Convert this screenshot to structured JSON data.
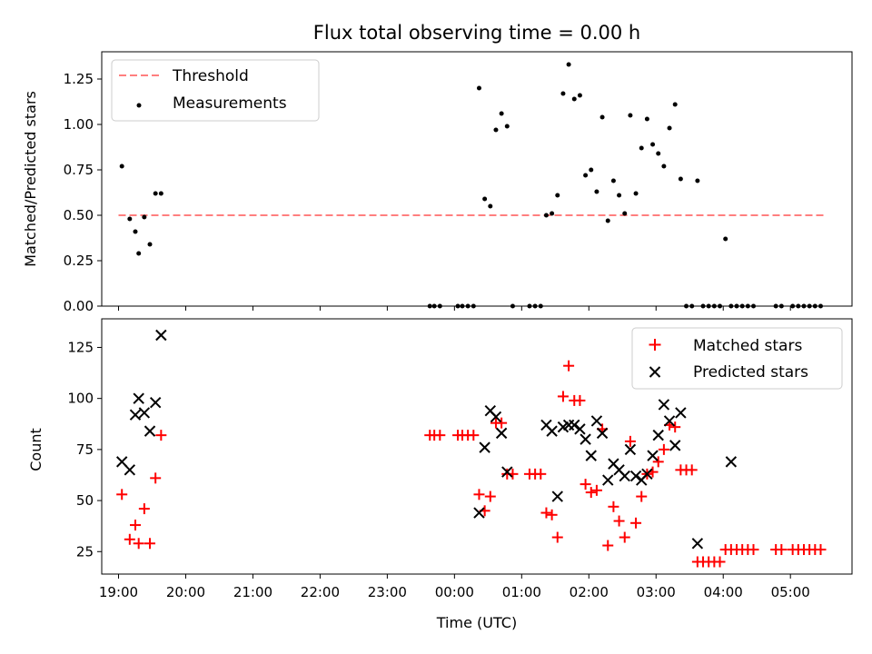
{
  "chart_data": [
    {
      "type": "scatter",
      "title": "Flux total observing time = 0.00 h",
      "ylabel": "Matched/Predicted stars",
      "xlim": [
        "18:45",
        "05:55"
      ],
      "ylim": [
        0,
        1.4
      ],
      "yticks": [
        "0.00",
        "0.25",
        "0.50",
        "0.75",
        "1.00",
        "1.25"
      ],
      "legend": "upper left",
      "legend_labels": [
        "Threshold",
        "Measurements"
      ],
      "threshold": {
        "name": "Threshold",
        "value": 0.5,
        "x_start": "19:00",
        "x_end": "05:30",
        "color": "#ff7f7f",
        "style": "dashed"
      },
      "series": [
        {
          "name": "Measurements",
          "marker": "dot",
          "color": "#000000",
          "points": [
            [
              "19:03",
              0.77
            ],
            [
              "19:10",
              0.48
            ],
            [
              "19:15",
              0.41
            ],
            [
              "19:18",
              0.29
            ],
            [
              "19:23",
              0.49
            ],
            [
              "19:28",
              0.34
            ],
            [
              "19:33",
              0.62
            ],
            [
              "19:38",
              0.62
            ],
            [
              "23:38",
              0.0
            ],
            [
              "23:42",
              0.0
            ],
            [
              "23:47",
              0.0
            ],
            [
              "00:03",
              0.0
            ],
            [
              "00:07",
              0.0
            ],
            [
              "00:12",
              0.0
            ],
            [
              "00:17",
              0.0
            ],
            [
              "00:22",
              1.2
            ],
            [
              "00:27",
              0.59
            ],
            [
              "00:32",
              0.55
            ],
            [
              "00:37",
              0.97
            ],
            [
              "00:42",
              1.06
            ],
            [
              "00:47",
              0.99
            ],
            [
              "00:52",
              0.0
            ],
            [
              "01:07",
              0.0
            ],
            [
              "01:12",
              0.0
            ],
            [
              "01:17",
              0.0
            ],
            [
              "01:22",
              0.5
            ],
            [
              "01:27",
              0.51
            ],
            [
              "01:32",
              0.61
            ],
            [
              "01:37",
              1.17
            ],
            [
              "01:42",
              1.33
            ],
            [
              "01:47",
              1.14
            ],
            [
              "01:52",
              1.16
            ],
            [
              "01:57",
              0.72
            ],
            [
              "02:02",
              0.75
            ],
            [
              "02:07",
              0.63
            ],
            [
              "02:12",
              1.04
            ],
            [
              "02:17",
              0.47
            ],
            [
              "02:22",
              0.69
            ],
            [
              "02:27",
              0.61
            ],
            [
              "02:32",
              0.51
            ],
            [
              "02:37",
              1.05
            ],
            [
              "02:42",
              0.62
            ],
            [
              "02:47",
              0.87
            ],
            [
              "02:52",
              1.03
            ],
            [
              "02:57",
              0.89
            ],
            [
              "03:02",
              0.84
            ],
            [
              "03:07",
              0.77
            ],
            [
              "03:12",
              0.98
            ],
            [
              "03:17",
              1.11
            ],
            [
              "03:22",
              0.7
            ],
            [
              "03:27",
              0.0
            ],
            [
              "03:32",
              0.0
            ],
            [
              "03:37",
              0.69
            ],
            [
              "03:42",
              0.0
            ],
            [
              "03:47",
              0.0
            ],
            [
              "03:52",
              0.0
            ],
            [
              "03:57",
              0.0
            ],
            [
              "04:02",
              0.37
            ],
            [
              "04:07",
              0.0
            ],
            [
              "04:12",
              0.0
            ],
            [
              "04:17",
              0.0
            ],
            [
              "04:22",
              0.0
            ],
            [
              "04:27",
              0.0
            ],
            [
              "04:47",
              0.0
            ],
            [
              "04:52",
              0.0
            ],
            [
              "05:02",
              0.0
            ],
            [
              "05:07",
              0.0
            ],
            [
              "05:12",
              0.0
            ],
            [
              "05:17",
              0.0
            ],
            [
              "05:22",
              0.0
            ],
            [
              "05:27",
              0.0
            ]
          ]
        }
      ]
    },
    {
      "type": "scatter",
      "xlabel": "Time (UTC)",
      "ylabel": "Count",
      "xlim": [
        "18:45",
        "05:55"
      ],
      "ylim": [
        14,
        139
      ],
      "xticks": [
        "19:00",
        "20:00",
        "21:00",
        "22:00",
        "23:00",
        "00:00",
        "01:00",
        "02:00",
        "03:00",
        "04:00",
        "05:00"
      ],
      "yticks": [
        "25",
        "50",
        "75",
        "100",
        "125"
      ],
      "legend": "upper right",
      "legend_labels": [
        "Matched stars",
        "Predicted stars"
      ],
      "series": [
        {
          "name": "Matched stars",
          "marker": "plus",
          "color": "#ff0000",
          "points": [
            [
              "19:03",
              53
            ],
            [
              "19:10",
              31
            ],
            [
              "19:15",
              38
            ],
            [
              "19:18",
              29
            ],
            [
              "19:23",
              46
            ],
            [
              "19:28",
              29
            ],
            [
              "19:33",
              61
            ],
            [
              "19:38",
              82
            ],
            [
              "23:38",
              82
            ],
            [
              "23:42",
              82
            ],
            [
              "23:47",
              82
            ],
            [
              "00:03",
              82
            ],
            [
              "00:07",
              82
            ],
            [
              "00:12",
              82
            ],
            [
              "00:17",
              82
            ],
            [
              "00:22",
              53
            ],
            [
              "00:27",
              45
            ],
            [
              "00:32",
              52
            ],
            [
              "00:37",
              88
            ],
            [
              "00:42",
              88
            ],
            [
              "00:47",
              63
            ],
            [
              "00:52",
              63
            ],
            [
              "01:07",
              63
            ],
            [
              "01:12",
              63
            ],
            [
              "01:17",
              63
            ],
            [
              "01:22",
              44
            ],
            [
              "01:27",
              43
            ],
            [
              "01:32",
              32
            ],
            [
              "01:37",
              101
            ],
            [
              "01:42",
              116
            ],
            [
              "01:47",
              99
            ],
            [
              "01:52",
              99
            ],
            [
              "01:57",
              58
            ],
            [
              "02:02",
              54
            ],
            [
              "02:07",
              55
            ],
            [
              "02:12",
              85
            ],
            [
              "02:17",
              28
            ],
            [
              "02:22",
              47
            ],
            [
              "02:27",
              40
            ],
            [
              "02:32",
              32
            ],
            [
              "02:37",
              79
            ],
            [
              "02:42",
              39
            ],
            [
              "02:47",
              52
            ],
            [
              "02:52",
              63
            ],
            [
              "02:57",
              64
            ],
            [
              "03:02",
              69
            ],
            [
              "03:07",
              75
            ],
            [
              "03:12",
              87
            ],
            [
              "03:17",
              86
            ],
            [
              "03:22",
              65
            ],
            [
              "03:27",
              65
            ],
            [
              "03:32",
              65
            ],
            [
              "03:37",
              20
            ],
            [
              "03:42",
              20
            ],
            [
              "03:47",
              20
            ],
            [
              "03:52",
              20
            ],
            [
              "03:57",
              20
            ],
            [
              "04:02",
              26
            ],
            [
              "04:07",
              26
            ],
            [
              "04:12",
              26
            ],
            [
              "04:17",
              26
            ],
            [
              "04:22",
              26
            ],
            [
              "04:27",
              26
            ],
            [
              "04:47",
              26
            ],
            [
              "04:52",
              26
            ],
            [
              "05:02",
              26
            ],
            [
              "05:07",
              26
            ],
            [
              "05:12",
              26
            ],
            [
              "05:17",
              26
            ],
            [
              "05:22",
              26
            ],
            [
              "05:27",
              26
            ]
          ]
        },
        {
          "name": "Predicted stars",
          "marker": "x",
          "color": "#000000",
          "points": [
            [
              "19:03",
              69
            ],
            [
              "19:10",
              65
            ],
            [
              "19:15",
              92
            ],
            [
              "19:18",
              100
            ],
            [
              "19:23",
              93
            ],
            [
              "19:28",
              84
            ],
            [
              "19:33",
              98
            ],
            [
              "19:38",
              131
            ],
            [
              "00:22",
              44
            ],
            [
              "00:27",
              76
            ],
            [
              "00:32",
              94
            ],
            [
              "00:37",
              91
            ],
            [
              "00:42",
              83
            ],
            [
              "00:47",
              64
            ],
            [
              "01:22",
              87
            ],
            [
              "01:27",
              84
            ],
            [
              "01:32",
              52
            ],
            [
              "01:37",
              86
            ],
            [
              "01:42",
              87
            ],
            [
              "01:47",
              87
            ],
            [
              "01:52",
              85
            ],
            [
              "01:57",
              80
            ],
            [
              "02:02",
              72
            ],
            [
              "02:07",
              89
            ],
            [
              "02:12",
              83
            ],
            [
              "02:17",
              60
            ],
            [
              "02:22",
              68
            ],
            [
              "02:27",
              65
            ],
            [
              "02:32",
              62
            ],
            [
              "02:37",
              75
            ],
            [
              "02:42",
              62
            ],
            [
              "02:47",
              60
            ],
            [
              "02:52",
              63
            ],
            [
              "02:57",
              72
            ],
            [
              "03:02",
              82
            ],
            [
              "03:07",
              97
            ],
            [
              "03:12",
              89
            ],
            [
              "03:17",
              77
            ],
            [
              "03:22",
              93
            ],
            [
              "03:37",
              29
            ],
            [
              "04:07",
              69
            ]
          ]
        }
      ]
    }
  ]
}
